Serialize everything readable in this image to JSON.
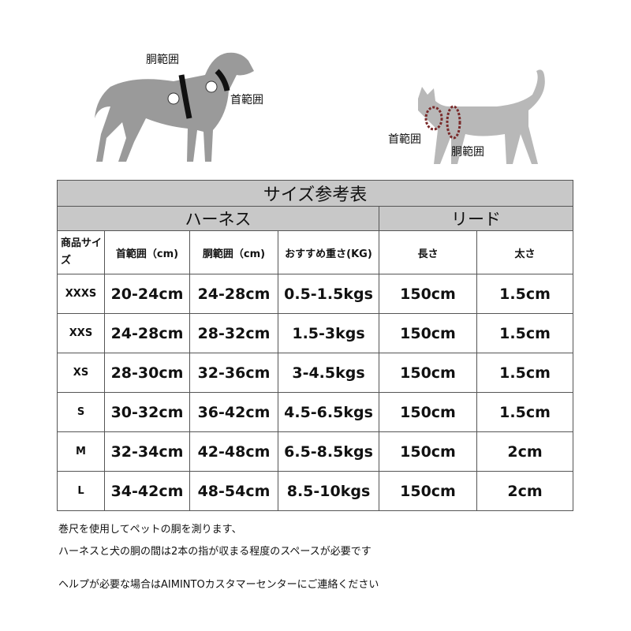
{
  "illustrations": {
    "dog": {
      "neck_label": "首範囲",
      "chest_label": "胴範囲"
    },
    "cat": {
      "neck_label": "首範囲",
      "chest_label": "胴範囲"
    }
  },
  "table": {
    "title": "サイズ参考表",
    "groups": [
      "ハーネス",
      "リード"
    ],
    "headers": [
      "商品サイズ",
      "首範囲（cm)",
      "胴範囲（cm)",
      "おすすめ重さ(KG)",
      "長さ",
      "太さ"
    ],
    "rows": [
      [
        "XXXS",
        "20-24cm",
        "24-28cm",
        "0.5-1.5kgs",
        "150cm",
        "1.5cm"
      ],
      [
        "XXS",
        "24-28cm",
        "28-32cm",
        "1.5-3kgs",
        "150cm",
        "1.5cm"
      ],
      [
        "XS",
        "28-30cm",
        "32-36cm",
        "3-4.5kgs",
        "150cm",
        "1.5cm"
      ],
      [
        "S",
        "30-32cm",
        "36-42cm",
        "4.5-6.5kgs",
        "150cm",
        "1.5cm"
      ],
      [
        "M",
        "32-34cm",
        "42-48cm",
        "6.5-8.5kgs",
        "150cm",
        "2cm"
      ],
      [
        "L",
        "34-42cm",
        "48-54cm",
        "8.5-10kgs",
        "150cm",
        "2cm"
      ]
    ]
  },
  "notes": [
    "巻尺を使用してペットの胴を測ります、",
    "ハーネスと犬の胴の間は2本の指が収まる程度のスペースが必要です",
    "ヘルプが必要な場合はAIMINTOカスタマーセンターにご連絡ください"
  ]
}
